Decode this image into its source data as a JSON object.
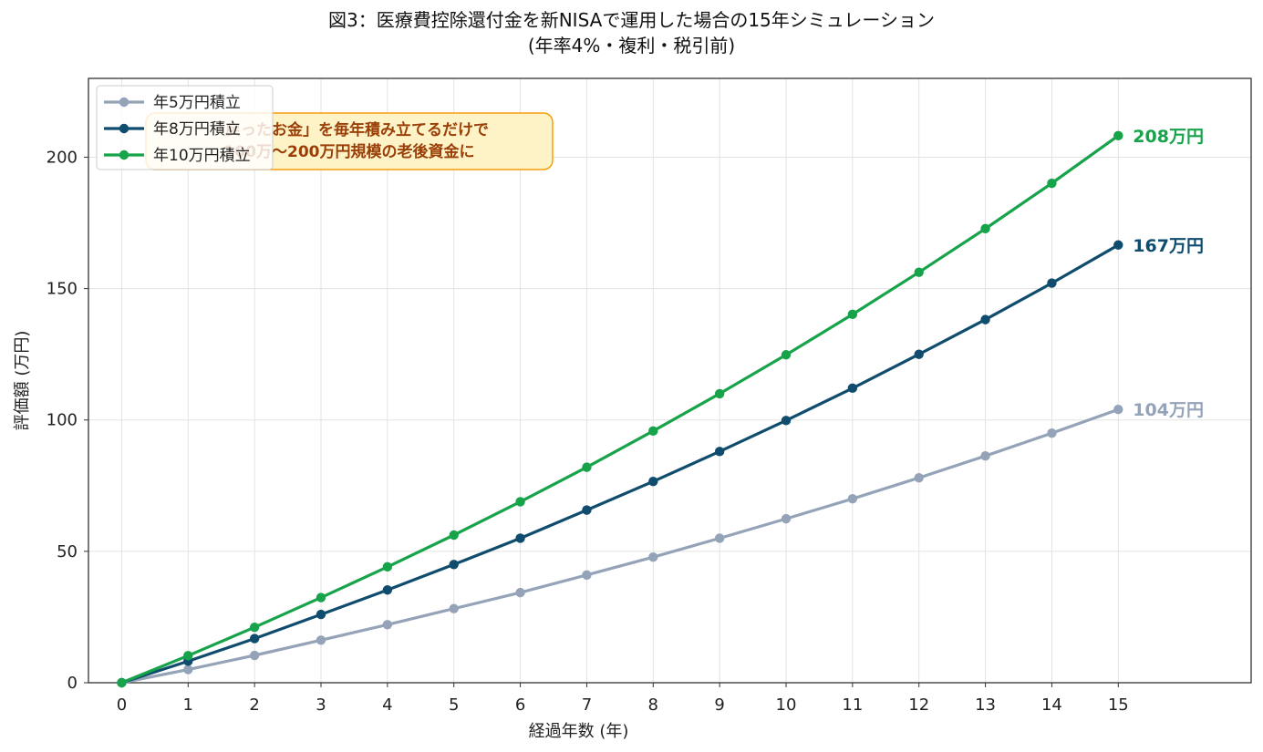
{
  "chart_data": {
    "type": "line",
    "title": "図3：医療費控除還付金を新NISAで運用した場合の15年シミュレーション",
    "subtitle": "(年率4%・複利・税引前)",
    "xlabel": "経過年数 (年)",
    "ylabel": "評価額 (万円)",
    "x": [
      0,
      1,
      2,
      3,
      4,
      5,
      6,
      7,
      8,
      9,
      10,
      11,
      12,
      13,
      14,
      15
    ],
    "xlim": [
      -0.5,
      17
    ],
    "ylim": [
      0,
      230
    ],
    "yticks": [
      0,
      50,
      100,
      150,
      200
    ],
    "grid": true,
    "legend_position": "top-left",
    "series": [
      {
        "name": "年5万円積立",
        "color": "#94a3b8",
        "values": [
          0,
          5,
          10.4,
          16.2,
          22.1,
          28.2,
          34.3,
          41,
          47.8,
          55,
          62.4,
          70,
          78,
          86.3,
          95,
          104
        ],
        "end_label": "104万円"
      },
      {
        "name": "年8万円積立",
        "color": "#0f4c6e",
        "values": [
          0,
          8.2,
          16.8,
          26,
          35.3,
          45,
          55,
          65.7,
          76.6,
          88,
          99.8,
          112.1,
          125,
          138.2,
          152.1,
          166.6
        ],
        "end_label": "167万円"
      },
      {
        "name": "年10万円積立",
        "color": "#16a34a",
        "values": [
          0,
          10.3,
          21.1,
          32.4,
          44.1,
          56.2,
          68.9,
          82,
          95.8,
          110,
          124.8,
          140.2,
          156.2,
          172.8,
          190.1,
          208.2
        ],
        "end_label": "208万円"
      }
    ],
    "annotation": {
      "lines": [
        "「戻ったお金」を毎年積み立てるだけで",
        "100万〜200万円規模の老後資金に"
      ],
      "text_color": "#9a3f07",
      "fill": "#fef3c7",
      "border": "#f59e0b"
    }
  }
}
